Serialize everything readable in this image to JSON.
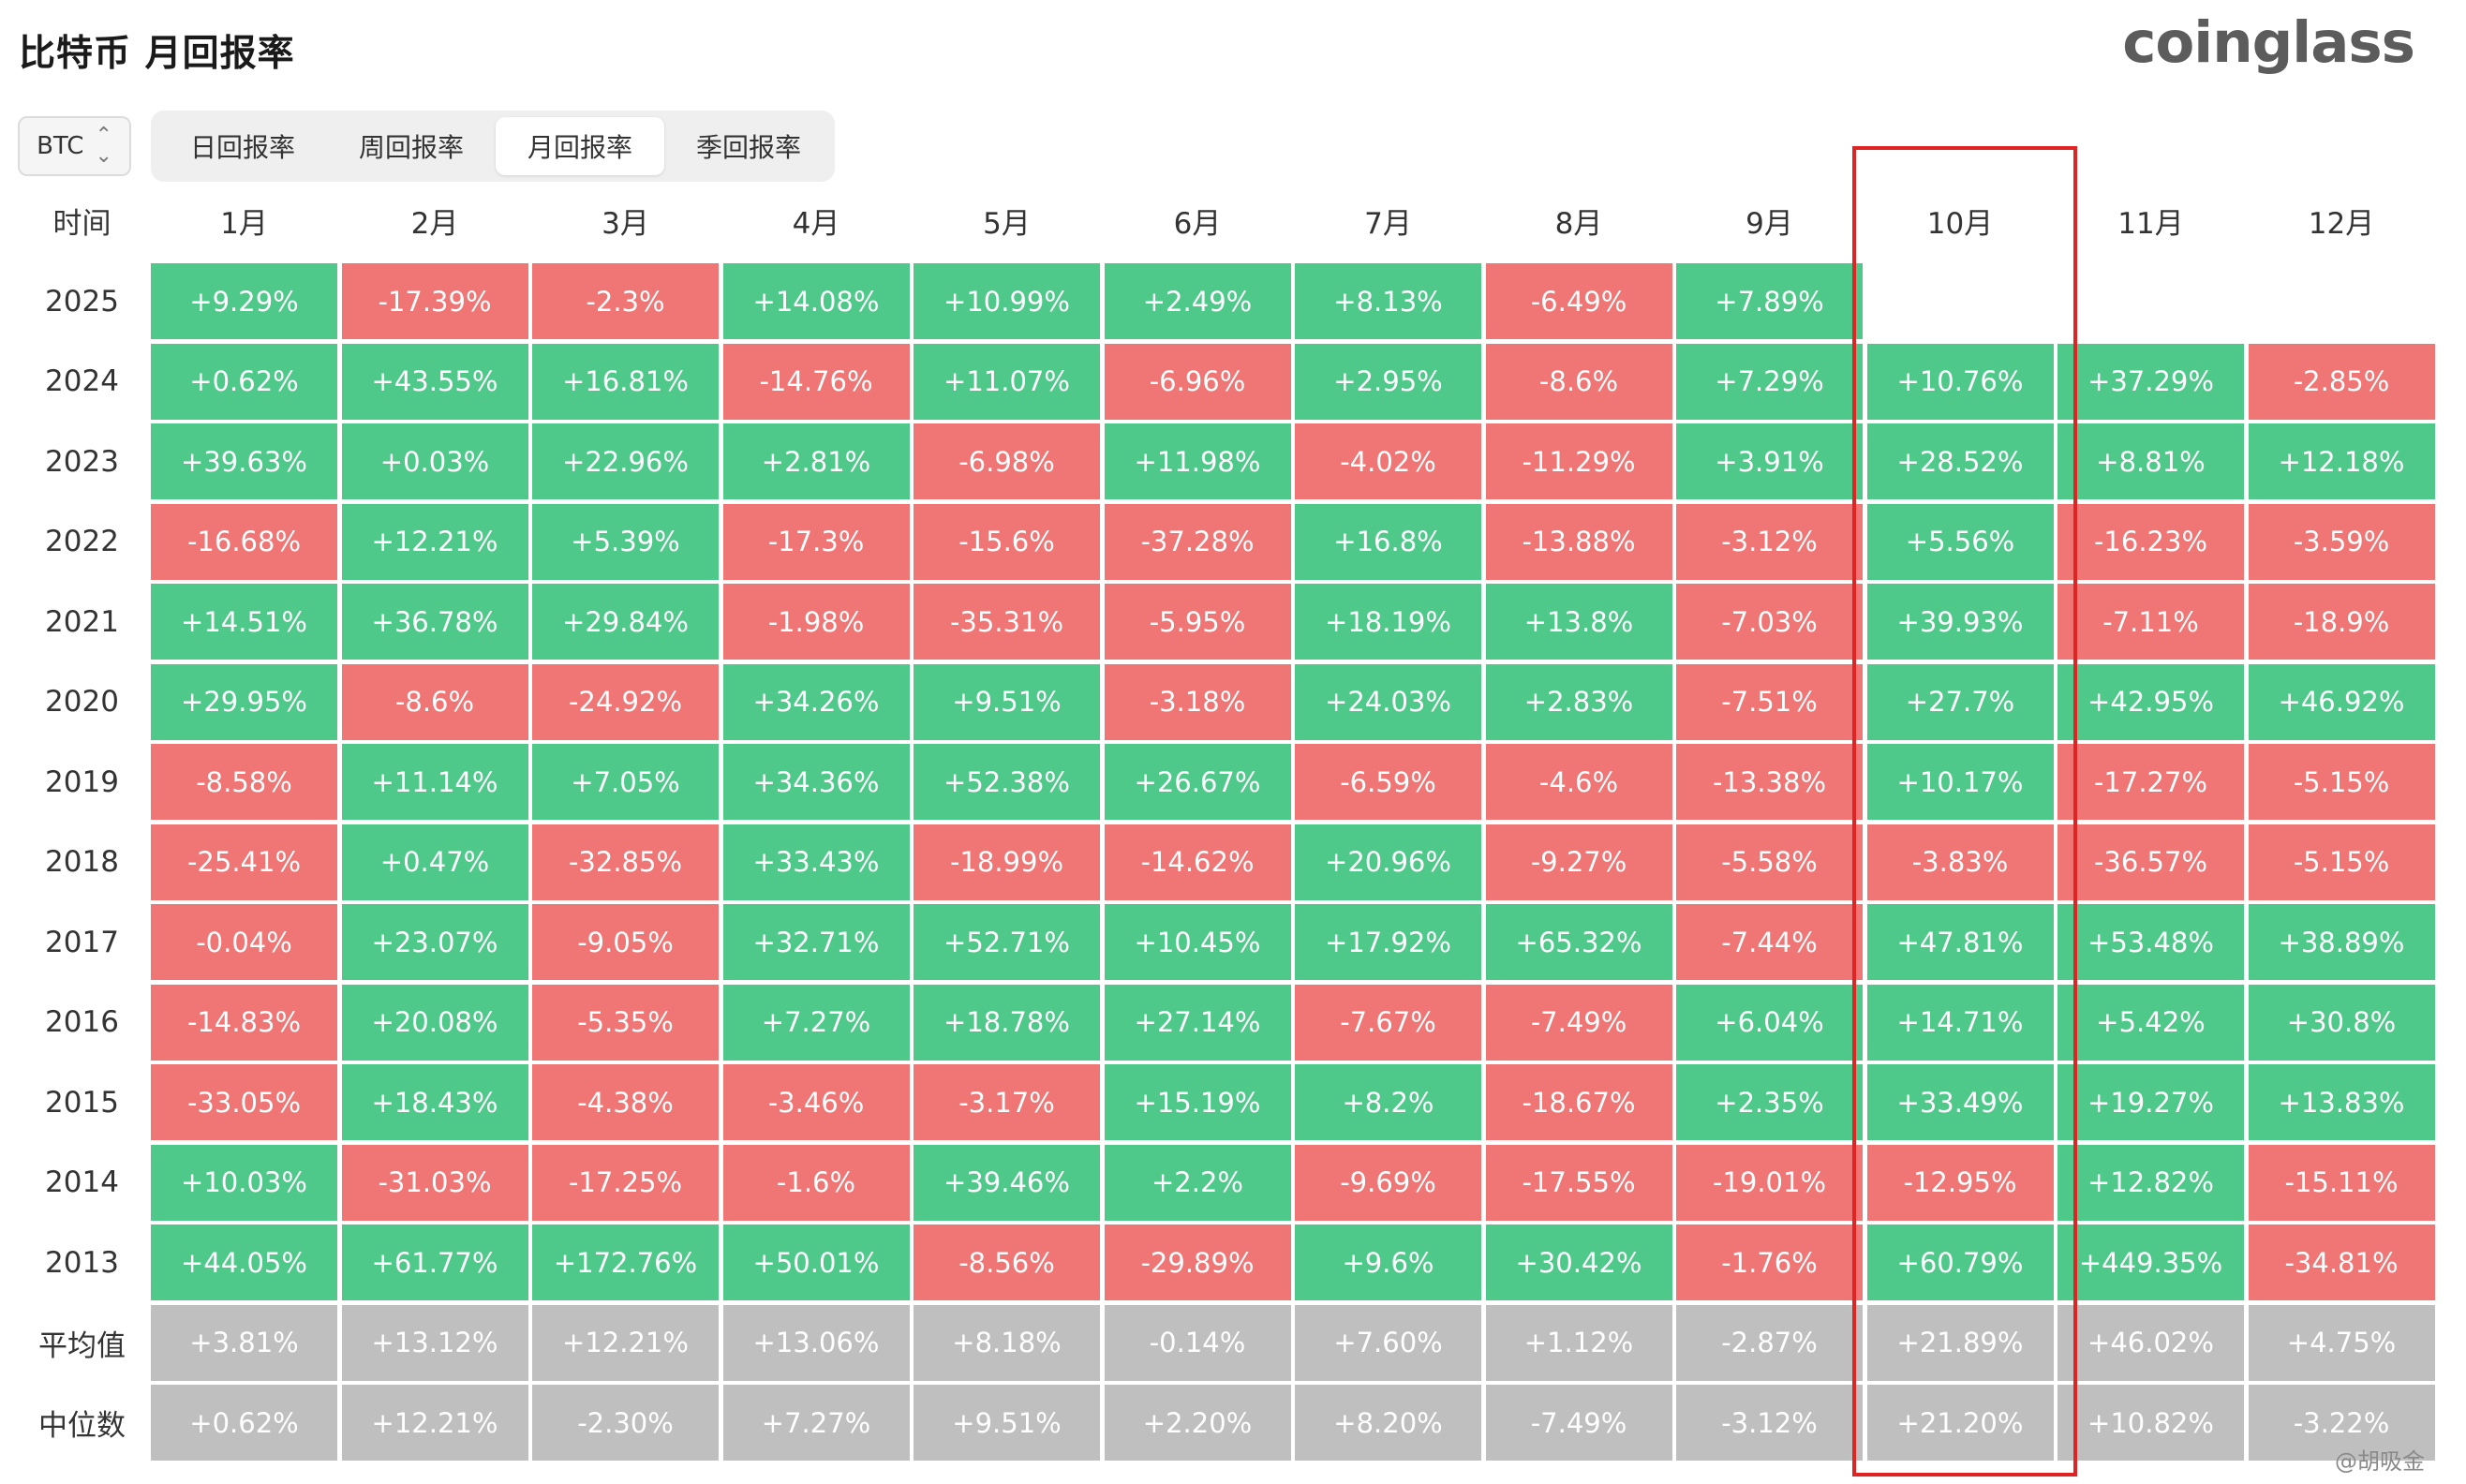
{
  "title": "比特币 月回报率",
  "logo": "coinglass",
  "asset_selector": {
    "value": "BTC",
    "icon": "chevron-updown-icon"
  },
  "tabs": [
    {
      "label": "日回报率",
      "active": false
    },
    {
      "label": "周回报率",
      "active": false
    },
    {
      "label": "月回报率",
      "active": true
    },
    {
      "label": "季回报率",
      "active": false
    }
  ],
  "colors": {
    "positive": "#4fc98a",
    "negative": "#f07575",
    "summary": "#bfbfbf",
    "highlight_border": "#e02424"
  },
  "table": {
    "corner": "时间",
    "months": [
      "1月",
      "2月",
      "3月",
      "4月",
      "5月",
      "6月",
      "7月",
      "8月",
      "9月",
      "10月",
      "11月",
      "12月"
    ],
    "rows": [
      {
        "label": "2025",
        "values": [
          "+9.29%",
          "-17.39%",
          "-2.3%",
          "+14.08%",
          "+10.99%",
          "+2.49%",
          "+8.13%",
          "-6.49%",
          "+7.89%",
          "",
          "",
          ""
        ]
      },
      {
        "label": "2024",
        "values": [
          "+0.62%",
          "+43.55%",
          "+16.81%",
          "-14.76%",
          "+11.07%",
          "-6.96%",
          "+2.95%",
          "-8.6%",
          "+7.29%",
          "+10.76%",
          "+37.29%",
          "-2.85%"
        ]
      },
      {
        "label": "2023",
        "values": [
          "+39.63%",
          "+0.03%",
          "+22.96%",
          "+2.81%",
          "-6.98%",
          "+11.98%",
          "-4.02%",
          "-11.29%",
          "+3.91%",
          "+28.52%",
          "+8.81%",
          "+12.18%"
        ]
      },
      {
        "label": "2022",
        "values": [
          "-16.68%",
          "+12.21%",
          "+5.39%",
          "-17.3%",
          "-15.6%",
          "-37.28%",
          "+16.8%",
          "-13.88%",
          "-3.12%",
          "+5.56%",
          "-16.23%",
          "-3.59%"
        ]
      },
      {
        "label": "2021",
        "values": [
          "+14.51%",
          "+36.78%",
          "+29.84%",
          "-1.98%",
          "-35.31%",
          "-5.95%",
          "+18.19%",
          "+13.8%",
          "-7.03%",
          "+39.93%",
          "-7.11%",
          "-18.9%"
        ]
      },
      {
        "label": "2020",
        "values": [
          "+29.95%",
          "-8.6%",
          "-24.92%",
          "+34.26%",
          "+9.51%",
          "-3.18%",
          "+24.03%",
          "+2.83%",
          "-7.51%",
          "+27.7%",
          "+42.95%",
          "+46.92%"
        ]
      },
      {
        "label": "2019",
        "values": [
          "-8.58%",
          "+11.14%",
          "+7.05%",
          "+34.36%",
          "+52.38%",
          "+26.67%",
          "-6.59%",
          "-4.6%",
          "-13.38%",
          "+10.17%",
          "-17.27%",
          "-5.15%"
        ]
      },
      {
        "label": "2018",
        "values": [
          "-25.41%",
          "+0.47%",
          "-32.85%",
          "+33.43%",
          "-18.99%",
          "-14.62%",
          "+20.96%",
          "-9.27%",
          "-5.58%",
          "-3.83%",
          "-36.57%",
          "-5.15%"
        ]
      },
      {
        "label": "2017",
        "values": [
          "-0.04%",
          "+23.07%",
          "-9.05%",
          "+32.71%",
          "+52.71%",
          "+10.45%",
          "+17.92%",
          "+65.32%",
          "-7.44%",
          "+47.81%",
          "+53.48%",
          "+38.89%"
        ]
      },
      {
        "label": "2016",
        "values": [
          "-14.83%",
          "+20.08%",
          "-5.35%",
          "+7.27%",
          "+18.78%",
          "+27.14%",
          "-7.67%",
          "-7.49%",
          "+6.04%",
          "+14.71%",
          "+5.42%",
          "+30.8%"
        ]
      },
      {
        "label": "2015",
        "values": [
          "-33.05%",
          "+18.43%",
          "-4.38%",
          "-3.46%",
          "-3.17%",
          "+15.19%",
          "+8.2%",
          "-18.67%",
          "+2.35%",
          "+33.49%",
          "+19.27%",
          "+13.83%"
        ]
      },
      {
        "label": "2014",
        "values": [
          "+10.03%",
          "-31.03%",
          "-17.25%",
          "-1.6%",
          "+39.46%",
          "+2.2%",
          "-9.69%",
          "-17.55%",
          "-19.01%",
          "-12.95%",
          "+12.82%",
          "-15.11%"
        ]
      },
      {
        "label": "2013",
        "values": [
          "+44.05%",
          "+61.77%",
          "+172.76%",
          "+50.01%",
          "-8.56%",
          "-29.89%",
          "+9.6%",
          "+30.42%",
          "-1.76%",
          "+60.79%",
          "+449.35%",
          "-34.81%"
        ]
      }
    ],
    "summary": [
      {
        "label": "平均值",
        "values": [
          "+3.81%",
          "+13.12%",
          "+12.21%",
          "+13.06%",
          "+8.18%",
          "-0.14%",
          "+7.60%",
          "+1.12%",
          "-2.87%",
          "+21.89%",
          "+46.02%",
          "+4.75%"
        ]
      },
      {
        "label": "中位数",
        "values": [
          "+0.62%",
          "+12.21%",
          "-2.30%",
          "+7.27%",
          "+9.51%",
          "+2.20%",
          "+8.20%",
          "-7.49%",
          "-3.12%",
          "+21.20%",
          "+10.82%",
          "-3.22%"
        ]
      }
    ]
  },
  "watermark": "@胡吸金"
}
